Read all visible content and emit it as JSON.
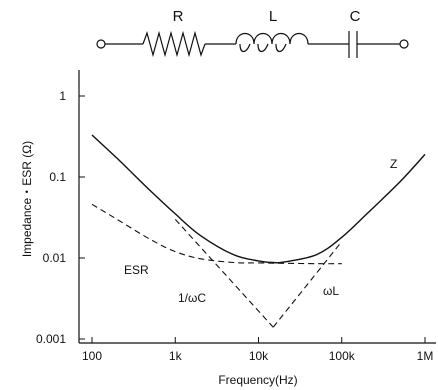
{
  "circuit": {
    "labels": [
      "R",
      "L",
      "C"
    ]
  },
  "chart_data": {
    "type": "line",
    "title": "",
    "xlabel": "Frequency(Hz)",
    "ylabel": "Impedance・ESR (Ω)",
    "xscale": "log",
    "yscale": "log",
    "xlim": [
      100,
      1000000
    ],
    "ylim": [
      0.001,
      1
    ],
    "xticks": [
      {
        "value": 100,
        "label": "100"
      },
      {
        "value": 1000,
        "label": "1k"
      },
      {
        "value": 10000,
        "label": "10k"
      },
      {
        "value": 100000,
        "label": "100k"
      },
      {
        "value": 1000000,
        "label": "1M"
      }
    ],
    "yticks": [
      {
        "value": 0.001,
        "label": "0.001"
      },
      {
        "value": 0.01,
        "label": "0.01"
      },
      {
        "value": 0.1,
        "label": "0.1"
      },
      {
        "value": 1,
        "label": "1"
      }
    ],
    "grid": false,
    "series": [
      {
        "name": "Z",
        "style": "solid",
        "x": [
          100,
          200,
          500,
          1000,
          2000,
          5000,
          10000,
          15000,
          20000,
          50000,
          100000,
          200000,
          500000,
          1000000
        ],
        "y": [
          0.33,
          0.17,
          0.068,
          0.035,
          0.019,
          0.011,
          0.0092,
          0.0088,
          0.0089,
          0.011,
          0.018,
          0.035,
          0.087,
          0.19
        ]
      },
      {
        "name": "ESR",
        "style": "dashed",
        "x": [
          100,
          200,
          500,
          1000,
          2000,
          5000,
          10000,
          20000,
          50000,
          100000
        ],
        "y": [
          0.046,
          0.03,
          0.017,
          0.012,
          0.0098,
          0.0088,
          0.0087,
          0.0086,
          0.0085,
          0.0085
        ]
      },
      {
        "name": "1/ωC",
        "style": "dashed",
        "x": [
          1000,
          15000
        ],
        "y": [
          0.03,
          0.0014
        ]
      },
      {
        "name": "ωL",
        "style": "dashed",
        "x": [
          15000,
          100000
        ],
        "y": [
          0.0014,
          0.016
        ]
      }
    ],
    "annotations": [
      "Z",
      "ESR",
      "1/ωC",
      "ωL"
    ]
  }
}
